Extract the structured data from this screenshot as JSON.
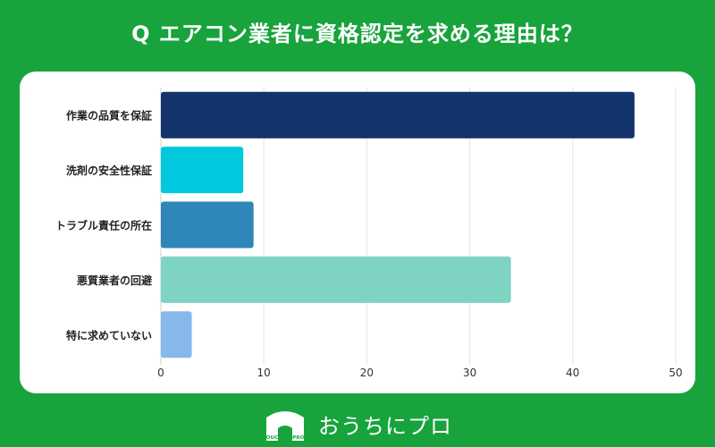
{
  "page": {
    "title": "Q エアコン業者に資格認定を求める理由は？",
    "brand_name": "おうちにプロ",
    "logo_text": "OUCHI ni PRO",
    "background_color": "#18a33c"
  },
  "chart_data": {
    "type": "bar",
    "orientation": "horizontal",
    "categories": [
      "作業の品質を保証",
      "洗剤の安全性保証",
      "トラブル責任の所在",
      "悪質業者の回避",
      "特に求めていない"
    ],
    "values": [
      46,
      8,
      9,
      34,
      3
    ],
    "colors": [
      "#12346b",
      "#00c9dd",
      "#2f86b8",
      "#7ed3c3",
      "#86b8ec"
    ],
    "xlim": [
      0,
      50
    ],
    "xticks": [
      0,
      10,
      20,
      30,
      40,
      50
    ],
    "grid": true,
    "title": "",
    "xlabel": "",
    "ylabel": ""
  }
}
